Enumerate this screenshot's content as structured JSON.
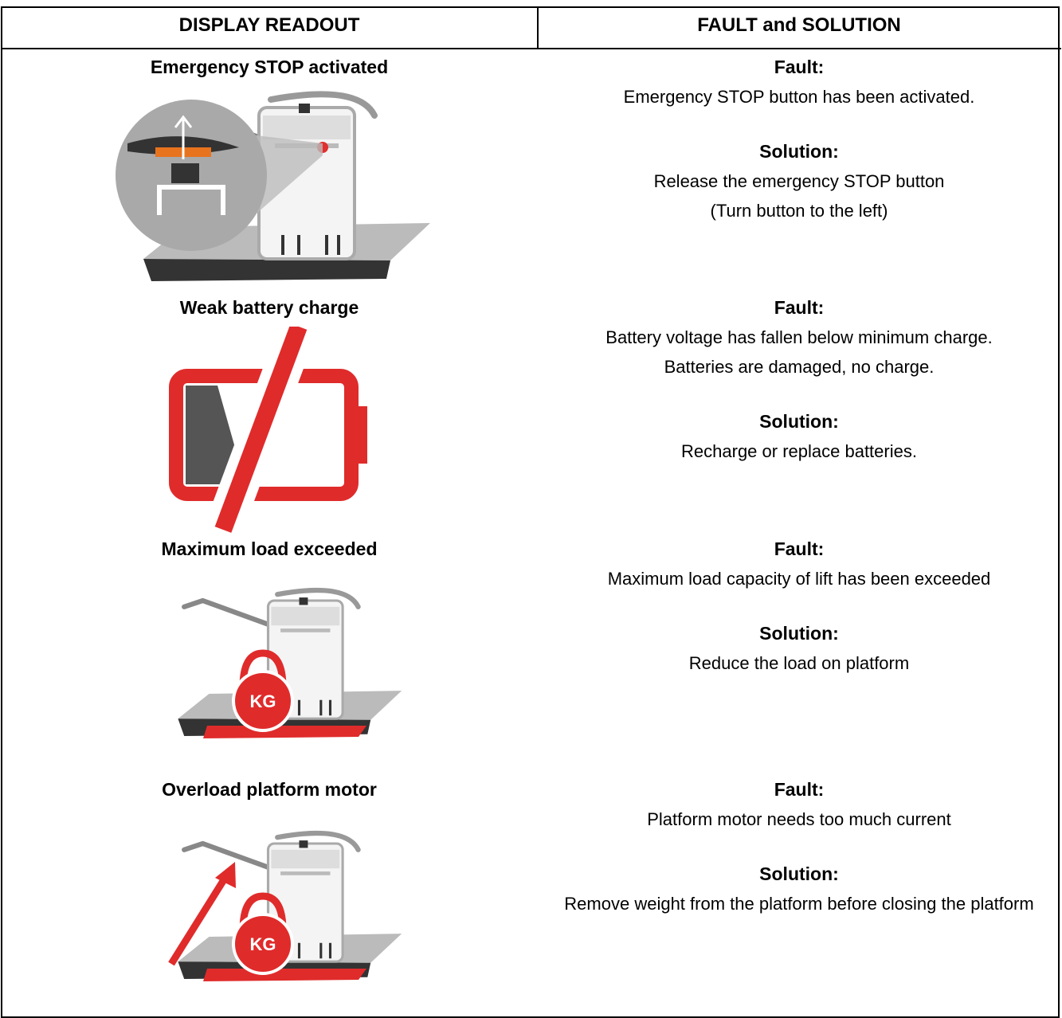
{
  "table": {
    "headers": [
      "DISPLAY READOUT",
      "FAULT and SOLUTION"
    ],
    "rows": [
      {
        "readout": "Emergency STOP activated",
        "fault_label": "Fault:",
        "fault": [
          "Emergency STOP button has been activated."
        ],
        "solution_label": "Solution:",
        "solution": [
          "Release the emergency STOP button",
          "(Turn button to the left)"
        ]
      },
      {
        "readout": "Weak battery charge",
        "fault_label": "Fault:",
        "fault": [
          "Battery voltage has fallen below minimum charge.",
          "Batteries are damaged, no charge."
        ],
        "solution_label": "Solution:",
        "solution": [
          "Recharge or replace batteries."
        ]
      },
      {
        "readout": "Maximum load exceeded",
        "icon_label": "KG",
        "fault_label": "Fault:",
        "fault": [
          "Maximum load capacity of lift has been exceeded"
        ],
        "solution_label": "Solution:",
        "solution": [
          "Reduce the load on platform"
        ]
      },
      {
        "readout": "Overload platform motor",
        "icon_label": "KG",
        "fault_label": "Fault:",
        "fault": [
          "Platform motor needs too much current"
        ],
        "solution_label": "Solution:",
        "solution": [
          "Remove weight from the platform before closing the platform"
        ]
      }
    ]
  }
}
